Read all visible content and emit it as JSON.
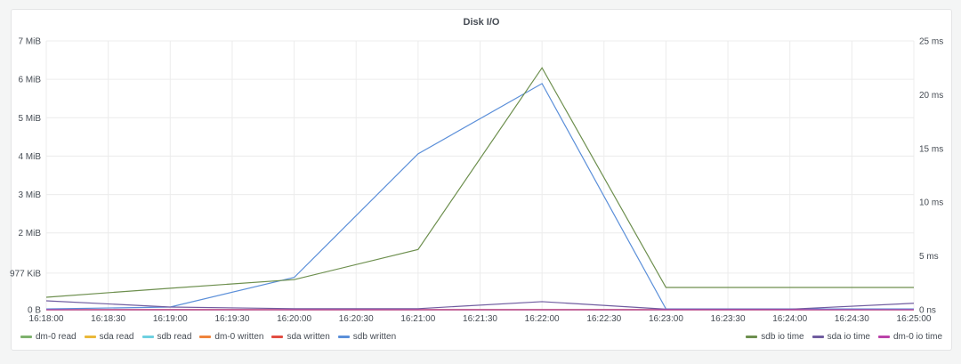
{
  "chart_data": {
    "type": "line",
    "title": "Disk I/O",
    "x": [
      "16:18:00",
      "16:19:00",
      "16:20:00",
      "16:21:00",
      "16:22:00",
      "16:23:00",
      "16:24:00",
      "16:25:00"
    ],
    "x_ticks": [
      "16:18:00",
      "16:18:30",
      "16:19:00",
      "16:19:30",
      "16:20:00",
      "16:20:30",
      "16:21:00",
      "16:21:30",
      "16:22:00",
      "16:22:30",
      "16:23:00",
      "16:23:30",
      "16:24:00",
      "16:24:30",
      "16:25:00"
    ],
    "y_left": {
      "unit": "MiB",
      "range": [
        0,
        7
      ],
      "ticks": [
        "0 B",
        "977 KiB",
        "2 MiB",
        "3 MiB",
        "4 MiB",
        "5 MiB",
        "6 MiB",
        "7 MiB"
      ],
      "tick_values": [
        0,
        0.954,
        2,
        3,
        4,
        5,
        6,
        7
      ]
    },
    "y_right": {
      "unit": "ms",
      "range": [
        0,
        25
      ],
      "ticks": [
        "0 ns",
        "5 ms",
        "10 ms",
        "15 ms",
        "20 ms",
        "25 ms"
      ],
      "tick_values": [
        0,
        5,
        10,
        15,
        20,
        25
      ]
    },
    "grid": true,
    "legend_left": "bottom-left",
    "legend_right": "bottom-right",
    "series": [
      {
        "name": "dm-0 read",
        "axis": "left",
        "color": "#7eb26d",
        "values": [
          0,
          0,
          0,
          0,
          0,
          0,
          0,
          0
        ]
      },
      {
        "name": "sda read",
        "axis": "left",
        "color": "#eab839",
        "values": [
          0,
          0,
          0,
          0,
          0,
          0,
          0,
          0
        ]
      },
      {
        "name": "sdb read",
        "axis": "left",
        "color": "#6ed0e0",
        "values": [
          0,
          0,
          0,
          0,
          0,
          0,
          0,
          0
        ]
      },
      {
        "name": "dm-0 written",
        "axis": "left",
        "color": "#ef843c",
        "values": [
          0,
          0,
          0,
          0,
          0,
          0,
          0,
          0
        ]
      },
      {
        "name": "sda written",
        "axis": "left",
        "color": "#e24d42",
        "values": [
          0,
          0,
          0,
          0,
          0,
          0,
          0,
          0
        ]
      },
      {
        "name": "sdb written",
        "axis": "left",
        "color": "#5b8fd9",
        "values": [
          0.02,
          0.07,
          0.84,
          4.06,
          5.89,
          0.02,
          0.02,
          0.02
        ]
      },
      {
        "name": "sdb io time",
        "axis": "right",
        "color": "#6d8f4e",
        "values": [
          1.16,
          2.0,
          2.8,
          5.6,
          22.5,
          2.07,
          2.07,
          2.07
        ]
      },
      {
        "name": "sda io time",
        "axis": "right",
        "color": "#705da0",
        "values": [
          0.83,
          0.25,
          0.1,
          0.1,
          0.75,
          0.05,
          0.05,
          0.6
        ]
      },
      {
        "name": "dm-0 io time",
        "axis": "right",
        "color": "#ba43a9",
        "values": [
          0,
          0,
          0,
          0,
          0,
          0,
          0,
          0
        ]
      }
    ]
  }
}
